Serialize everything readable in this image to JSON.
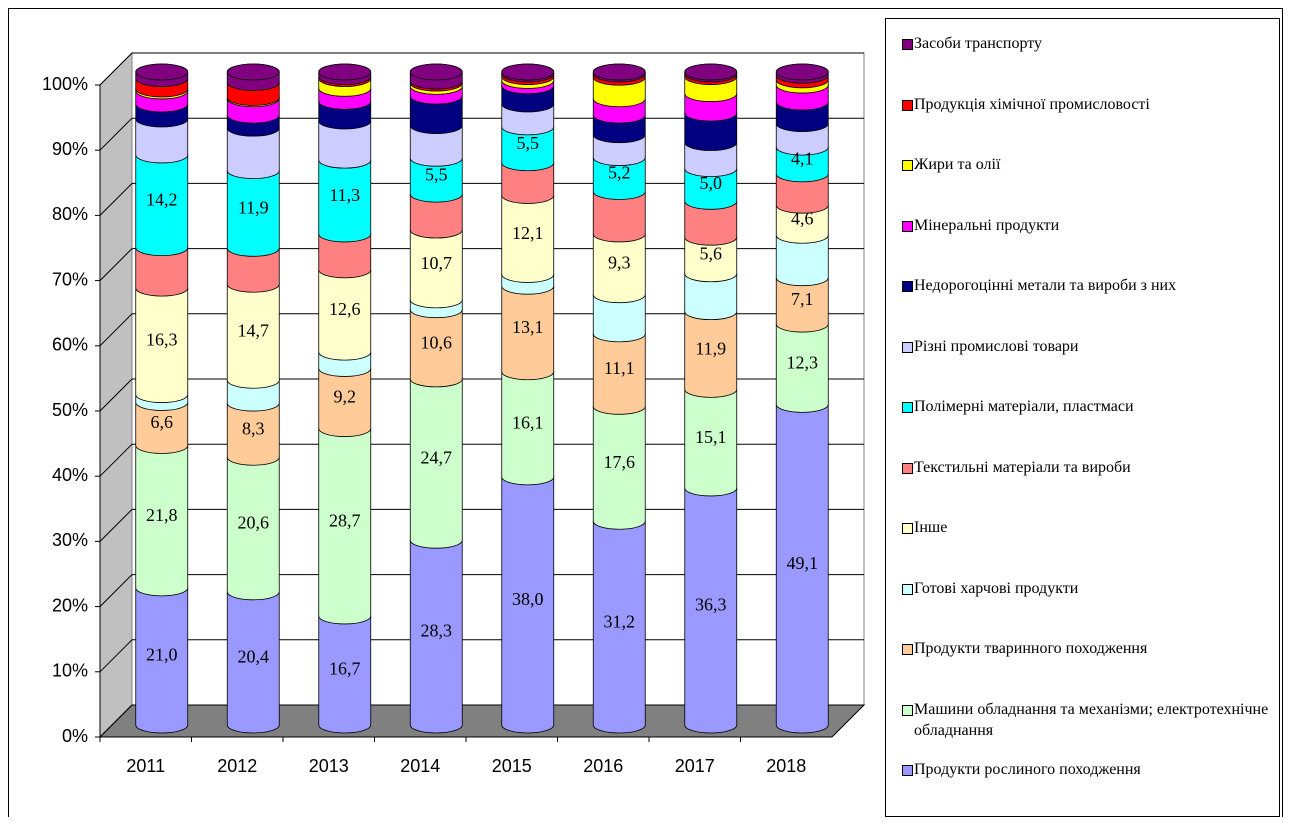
{
  "chart_data": {
    "type": "stacked_cylinder",
    "categories": [
      "2011",
      "2012",
      "2013",
      "2014",
      "2015",
      "2016",
      "2017",
      "2018"
    ],
    "ylim": [
      0,
      100
    ],
    "yticks": [
      {
        "value": 0,
        "label": "0%"
      },
      {
        "value": 10,
        "label": "10%"
      },
      {
        "value": 20,
        "label": "20%"
      },
      {
        "value": 30,
        "label": "30%"
      },
      {
        "value": 40,
        "label": "40%"
      },
      {
        "value": 50,
        "label": "50%"
      },
      {
        "value": 60,
        "label": "60%"
      },
      {
        "value": 70,
        "label": "70%"
      },
      {
        "value": 80,
        "label": "80%"
      },
      {
        "value": 90,
        "label": "90%"
      },
      {
        "value": 100,
        "label": "100%"
      }
    ],
    "grid": true,
    "series": [
      {
        "name": "Продукти рослиного походження",
        "color": "#9999ff",
        "values": [
          21.0,
          20.4,
          16.7,
          28.3,
          38.0,
          31.2,
          36.3,
          49.1
        ],
        "value_labels": [
          "21,0",
          "20,4",
          "16,7",
          "28,3",
          "38,0",
          "31,2",
          "36,3",
          "49,1"
        ]
      },
      {
        "name": "Машини обладнання та механізми; електротехнічне обладнання",
        "color": "#ccffcc",
        "values": [
          21.8,
          20.6,
          28.7,
          24.7,
          16.1,
          17.6,
          15.1,
          12.3
        ],
        "value_labels": [
          "21,8",
          "20,6",
          "28,7",
          "24,7",
          "16,1",
          "17,6",
          "15,1",
          "12,3"
        ]
      },
      {
        "name": "Продукти тваринного походження",
        "color": "#ffcc99",
        "values": [
          6.6,
          8.3,
          9.2,
          10.6,
          13.1,
          11.1,
          11.9,
          7.1
        ],
        "value_labels": [
          "6,6",
          "8,3",
          "9,2",
          "10,6",
          "13,1",
          "11,1",
          "11,9",
          "7,1"
        ]
      },
      {
        "name": "Готові харчові продукти",
        "color": "#ccffff",
        "values": [
          1.2,
          3.5,
          2.5,
          1.5,
          1.8,
          6.0,
          5.8,
          6.5
        ]
      },
      {
        "name": "Інше",
        "color": "#ffffcc",
        "values": [
          16.3,
          14.7,
          12.6,
          10.7,
          12.1,
          9.3,
          5.6,
          4.6
        ],
        "value_labels": [
          "16,3",
          "14,7",
          "12,6",
          "10,7",
          "12,1",
          "9,3",
          "5,6",
          "4,6"
        ]
      },
      {
        "name": "Текстильні матеріали та вироби",
        "color": "#ff8080",
        "values": [
          6.2,
          5.5,
          5.5,
          5.5,
          5.0,
          6.5,
          5.5,
          4.8
        ]
      },
      {
        "name": "Полімерні матеріали, пластмаси",
        "color": "#00ffff",
        "values": [
          14.2,
          11.9,
          11.3,
          5.5,
          5.5,
          5.2,
          5.0,
          4.1
        ],
        "value_labels": [
          "14,2",
          "11,9",
          "11,3",
          "5,5",
          "5,5",
          "5,2",
          "5,0",
          "4,1"
        ]
      },
      {
        "name": "Різні промислові товари",
        "color": "#ccccff",
        "values": [
          5.5,
          6.5,
          6.0,
          5.0,
          3.5,
          3.5,
          4.0,
          3.6
        ]
      },
      {
        "name": "Недорогоцінні метали та вироби з них",
        "color": "#000080",
        "values": [
          2.3,
          2.0,
          3.0,
          4.5,
          2.8,
          3.0,
          4.5,
          3.3
        ]
      },
      {
        "name": "Мінеральні продукти",
        "color": "#ff00ff",
        "values": [
          2.0,
          2.5,
          2.0,
          1.5,
          0.8,
          2.5,
          3.0,
          2.6
        ]
      },
      {
        "name": "Жири та олії",
        "color": "#ffff00",
        "values": [
          0.3,
          0.2,
          1.5,
          0.5,
          0.6,
          3.3,
          2.6,
          0.8
        ]
      },
      {
        "name": "Продукція хімічної промисловості",
        "color": "#ff0000",
        "values": [
          1.6,
          2.3,
          0.3,
          0.3,
          0.4,
          0.5,
          0.4,
          0.7
        ]
      },
      {
        "name": "Засоби транспорту",
        "color": "#800080",
        "values": [
          1.0,
          1.6,
          0.7,
          1.4,
          0.3,
          0.3,
          0.3,
          0.5
        ]
      }
    ]
  }
}
